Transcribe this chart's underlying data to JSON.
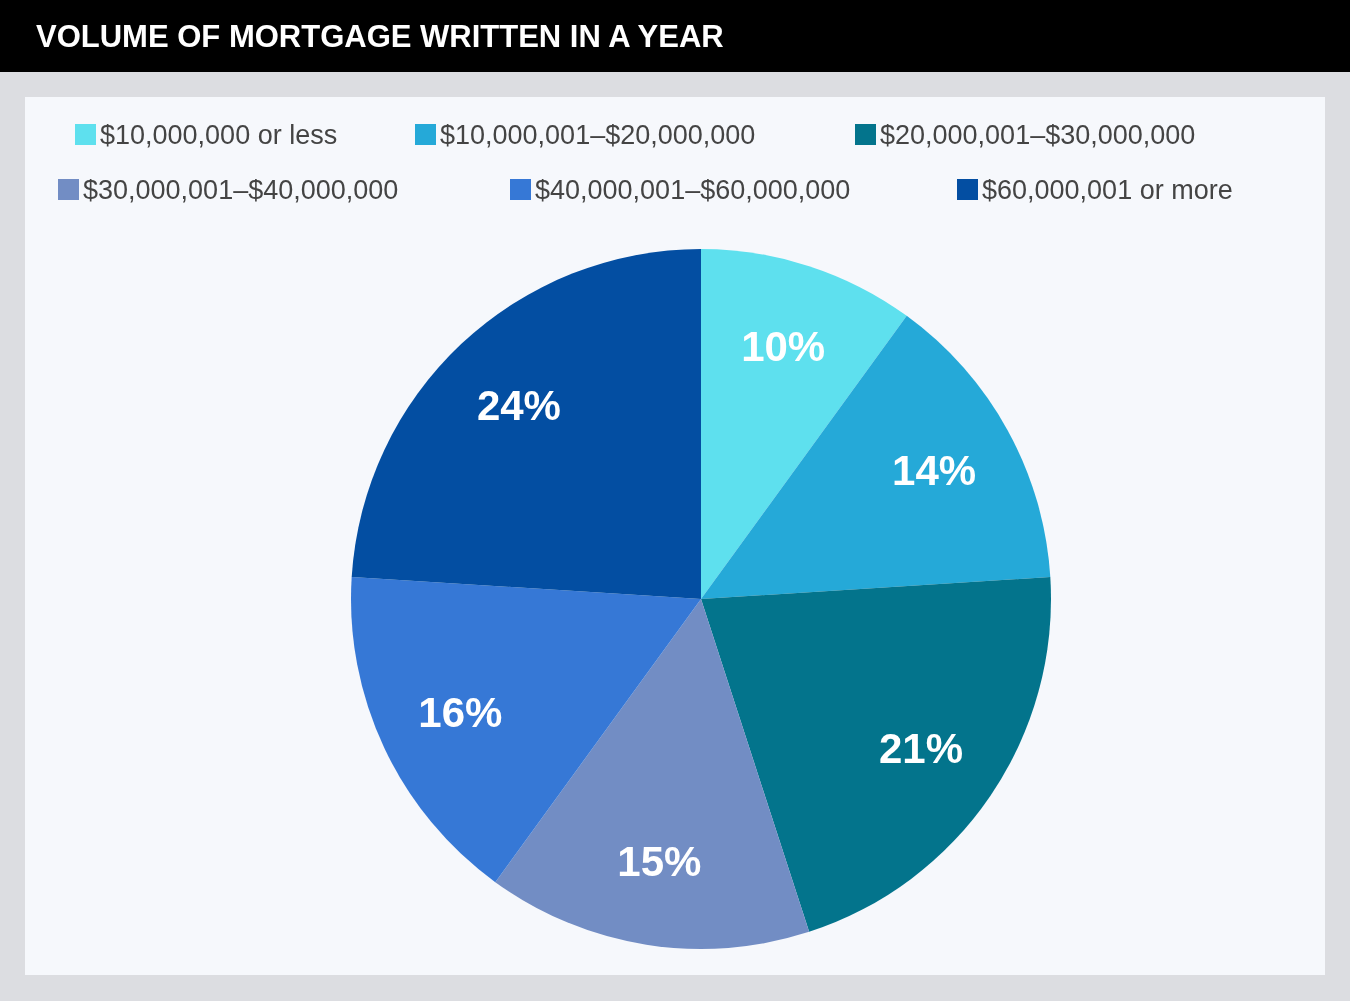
{
  "chart_data": {
    "type": "pie",
    "title": "VOLUME OF MORTGAGE WRITTEN IN A YEAR",
    "categories": [
      "$10,000,000 or less",
      "$10,000,001–$20,000,000",
      "$20,000,001–$30,000,000",
      "$30,000,001–$40,000,000",
      "$40,000,001–$60,000,000",
      "$60,000,001 or more"
    ],
    "values": [
      10,
      14,
      21,
      15,
      16,
      24
    ],
    "colors": [
      "#5ee0ee",
      "#25a9d8",
      "#03748c",
      "#728dc4",
      "#3678d6",
      "#034ea2"
    ],
    "value_labels": [
      "10%",
      "14%",
      "21%",
      "15%",
      "16%",
      "24%"
    ],
    "legend": "top"
  }
}
